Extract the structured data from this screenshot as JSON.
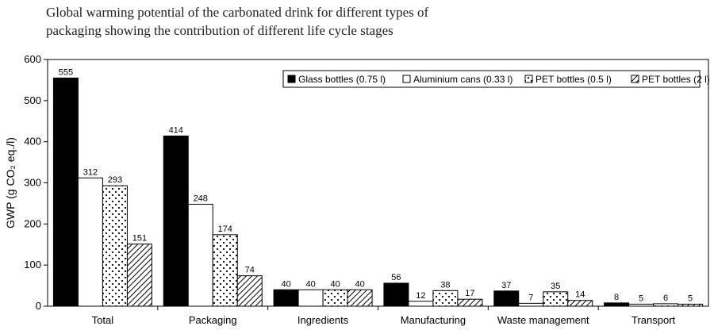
{
  "title_lines": [
    "Global warming potential of the carbonated drink for different types of",
    "packaging showing the contribution of different life cycle stages"
  ],
  "chart_data": {
    "type": "bar",
    "title": "Global warming potential of the carbonated drink for different types of packaging showing the contribution of different life cycle stages",
    "ylabel": "GWP (g CO₂ eq./l)",
    "xlabel": "",
    "ylim": [
      0,
      600
    ],
    "yticks": [
      0,
      100,
      200,
      300,
      400,
      500,
      600
    ],
    "categories": [
      "Total",
      "Packaging",
      "Ingredients",
      "Manufacturing",
      "Waste management",
      "Transport"
    ],
    "series": [
      {
        "name": "Glass bottles (0.75 l)",
        "pattern": "solid-black",
        "values": [
          555,
          414,
          40,
          56,
          37,
          8
        ]
      },
      {
        "name": "Aluminium cans (0.33 l)",
        "pattern": "white",
        "values": [
          312,
          248,
          40,
          12,
          7,
          5
        ]
      },
      {
        "name": "PET bottles (0.5 l)",
        "pattern": "dots",
        "values": [
          293,
          174,
          40,
          38,
          35,
          6
        ]
      },
      {
        "name": "PET bottles (2 l)",
        "pattern": "diagonal-hatch",
        "values": [
          151,
          74,
          40,
          17,
          14,
          5
        ]
      }
    ],
    "legend_position": "top-right",
    "grid": false
  }
}
